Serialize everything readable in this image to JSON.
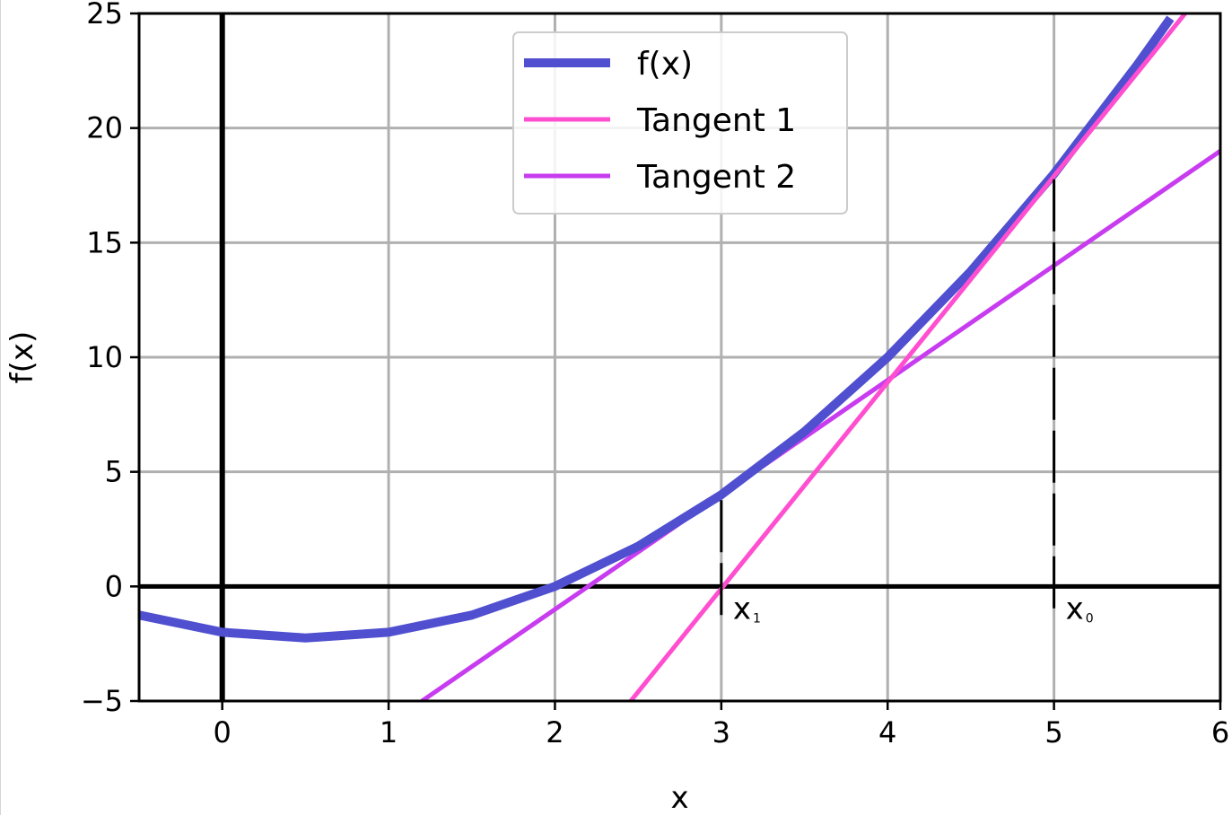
{
  "chart_data": {
    "type": "line",
    "xlabel": "x",
    "ylabel": "f(x)",
    "xlim": [
      -0.5,
      6
    ],
    "ylim": [
      -5,
      25
    ],
    "x_ticks": [
      0,
      1,
      2,
      3,
      4,
      5,
      6
    ],
    "y_ticks": [
      -5,
      0,
      5,
      10,
      15,
      20,
      25
    ],
    "x_tick_labels": [
      "0",
      "1",
      "2",
      "3",
      "4",
      "5",
      "6"
    ],
    "y_tick_labels": [
      "−5",
      "0",
      "5",
      "10",
      "15",
      "20",
      "25"
    ],
    "grid": true,
    "legend_position": "top-center",
    "series": [
      {
        "name": "f(x)",
        "color": "#4f4fd0",
        "x": [
          -0.5,
          0,
          0.5,
          1,
          1.5,
          2,
          2.5,
          3,
          3.5,
          4,
          4.5,
          5,
          5.5,
          5.7
        ],
        "values": [
          -1.25,
          -2,
          -2.25,
          -2,
          -1.25,
          0,
          1.75,
          4,
          6.75,
          10,
          13.75,
          18,
          22.75,
          24.79
        ]
      },
      {
        "name": "Tangent 1",
        "color": "#ff4fd0",
        "x": [
          2.45,
          5.8
        ],
        "values": [
          -5.05,
          25.1
        ]
      },
      {
        "name": "Tangent 2",
        "color": "#c83cf0",
        "x": [
          1.2,
          6
        ],
        "values": [
          -5,
          19
        ]
      }
    ],
    "annotations": [
      {
        "label": "x",
        "subscript": "1",
        "x": 3,
        "y": 4
      },
      {
        "label": "x",
        "subscript": "0",
        "x": 5,
        "y": 18
      }
    ]
  }
}
